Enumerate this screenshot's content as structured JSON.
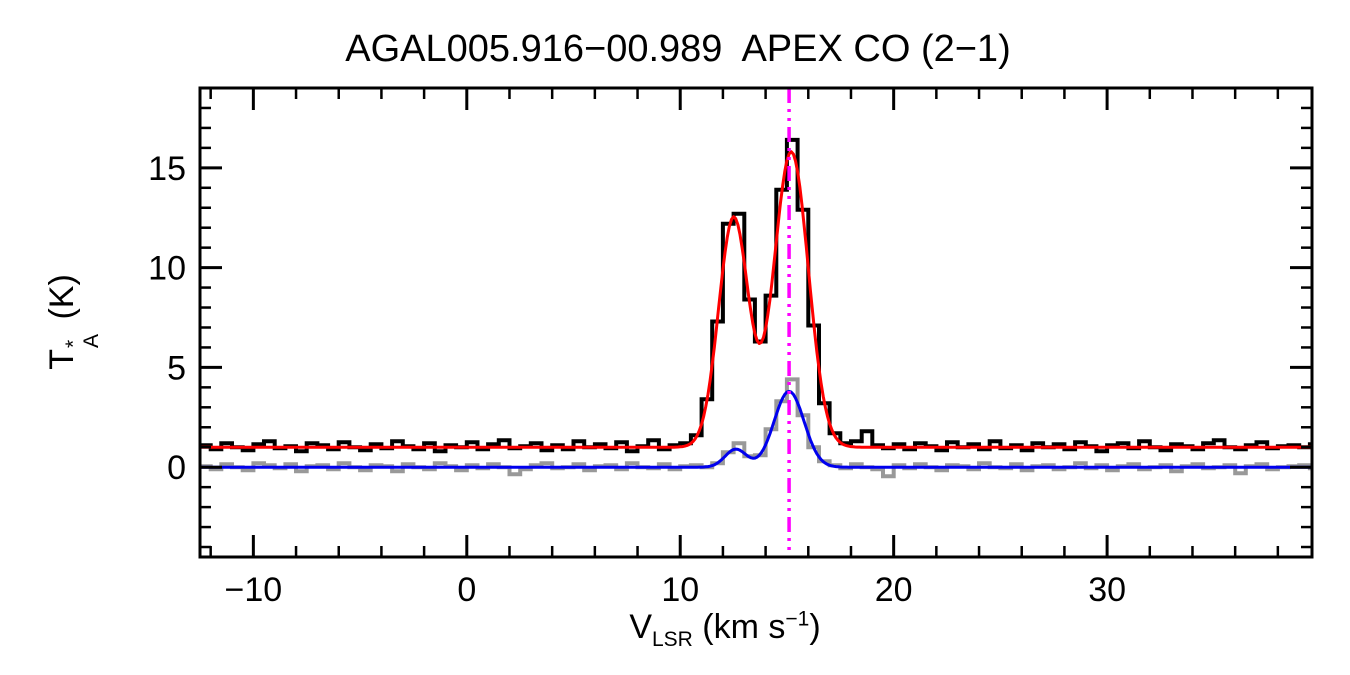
{
  "title": "AGAL005.916−00.989  APEX CO (2−1)",
  "axes": {
    "xlabel": {
      "base": "V",
      "sub": "LSR",
      "mid": " (km s",
      "sup": "−1",
      "end": ")"
    },
    "ylabel": {
      "base": "T",
      "sup": "*",
      "sub": "A",
      "end": " (K)"
    }
  },
  "chart_data": {
    "type": "line",
    "title": "AGAL005.916−00.989  APEX CO (2−1)",
    "xlabel": "V_LSR (km s^-1)",
    "ylabel": "T_A^* (K)",
    "xlim": [
      -12.5,
      39.6
    ],
    "ylim": [
      -4.5,
      19.0
    ],
    "grid": false,
    "legend": "none",
    "x_major_ticks": [
      -10,
      0,
      10,
      20,
      30
    ],
    "x_tick_labels": [
      "−10",
      "0",
      "10",
      "20",
      "30"
    ],
    "x_minor_step": 2,
    "y_major_ticks": [
      0,
      5,
      10,
      15
    ],
    "y_tick_labels": [
      "0",
      "5",
      "10",
      "15"
    ],
    "y_minor_step": 1,
    "series": [
      {
        "name": "secondary-spectrum-histogram",
        "style": "histogram",
        "color": "#999999",
        "lw": 4,
        "x_start": -12.25,
        "dx": 0.5,
        "values": [
          0.05,
          -0.1,
          0.15,
          0.0,
          -0.15,
          0.2,
          0.1,
          -0.05,
          0.15,
          -0.2,
          0.05,
          0.1,
          -0.1,
          0.2,
          0.0,
          -0.15,
          0.1,
          0.05,
          -0.2,
          0.15,
          0.0,
          -0.1,
          0.2,
          0.05,
          -0.15,
          0.1,
          -0.05,
          0.15,
          0.0,
          -0.35,
          -0.1,
          0.1,
          0.2,
          -0.05,
          0.0,
          0.15,
          -0.15,
          0.05,
          0.1,
          -0.1,
          0.2,
          0.0,
          -0.05,
          0.15,
          -0.1,
          0.05,
          0.1,
          0.0,
          0.2,
          0.75,
          1.2,
          0.55,
          0.6,
          1.9,
          3.3,
          4.4,
          2.6,
          1.0,
          0.3,
          0.1,
          -0.05,
          0.15,
          0.0,
          -0.1,
          -0.45,
          0.1,
          -0.05,
          0.15,
          0.0,
          -0.15,
          0.1,
          0.05,
          -0.1,
          0.2,
          0.0,
          -0.05,
          0.15,
          -0.15,
          0.05,
          0.1,
          -0.1,
          0.0,
          0.2,
          -0.05,
          0.1,
          -0.15,
          0.05,
          0.15,
          -0.1,
          0.0,
          0.1,
          -0.2,
          0.05,
          0.15,
          -0.05,
          0.0,
          0.1,
          -0.3,
          0.05,
          0.15,
          -0.1,
          0.0,
          0.05,
          0.1,
          -0.05
        ]
      },
      {
        "name": "observed-spectrum-histogram",
        "style": "histogram",
        "color": "#000000",
        "lw": 4,
        "x_start": -12.25,
        "dx": 0.5,
        "values": [
          1.1,
          0.9,
          1.2,
          1.0,
          0.85,
          1.15,
          1.3,
          0.95,
          1.05,
          0.8,
          1.2,
          1.1,
          0.9,
          1.25,
          1.0,
          0.85,
          1.15,
          0.95,
          1.3,
          1.05,
          0.9,
          1.2,
          0.8,
          1.1,
          1.0,
          1.25,
          0.9,
          1.15,
          1.35,
          0.95,
          1.05,
          1.2,
          0.85,
          1.1,
          0.9,
          1.3,
          1.0,
          1.15,
          0.95,
          1.25,
          0.8,
          1.05,
          1.35,
          0.9,
          1.1,
          1.2,
          1.6,
          3.4,
          7.3,
          12.2,
          12.7,
          8.4,
          6.3,
          8.6,
          13.9,
          16.4,
          12.9,
          7.1,
          3.2,
          1.7,
          1.2,
          1.3,
          1.8,
          1.1,
          0.95,
          1.15,
          0.9,
          1.2,
          1.05,
          0.85,
          1.25,
          1.0,
          1.15,
          0.9,
          1.3,
          0.95,
          1.1,
          0.85,
          1.2,
          1.0,
          1.15,
          0.9,
          1.25,
          1.05,
          0.8,
          1.1,
          1.2,
          0.95,
          1.3,
          1.0,
          0.85,
          1.15,
          1.05,
          0.9,
          1.2,
          1.35,
          1.0,
          0.9,
          1.1,
          1.25,
          0.95,
          1.05,
          1.1,
          1.0,
          1.15
        ]
      },
      {
        "name": "gaussian-fit-secondary",
        "style": "gaussian-fit",
        "color": "#0000ee",
        "lw": 3,
        "baseline": 0.0,
        "components": [
          {
            "amp": 0.9,
            "center": 12.6,
            "sigma": 0.5
          },
          {
            "amp": 3.8,
            "center": 15.1,
            "sigma": 0.7
          }
        ]
      },
      {
        "name": "gaussian-fit-main",
        "style": "gaussian-fit",
        "color": "#ff0000",
        "lw": 3,
        "baseline": 1.0,
        "components": [
          {
            "amp": 11.5,
            "center": 12.5,
            "sigma": 0.7
          },
          {
            "amp": 14.8,
            "center": 15.2,
            "sigma": 0.8
          }
        ]
      }
    ],
    "vline": {
      "x": 15.1,
      "color": "#ff00ff",
      "style": "dash-dot",
      "lw": 3.5
    }
  }
}
